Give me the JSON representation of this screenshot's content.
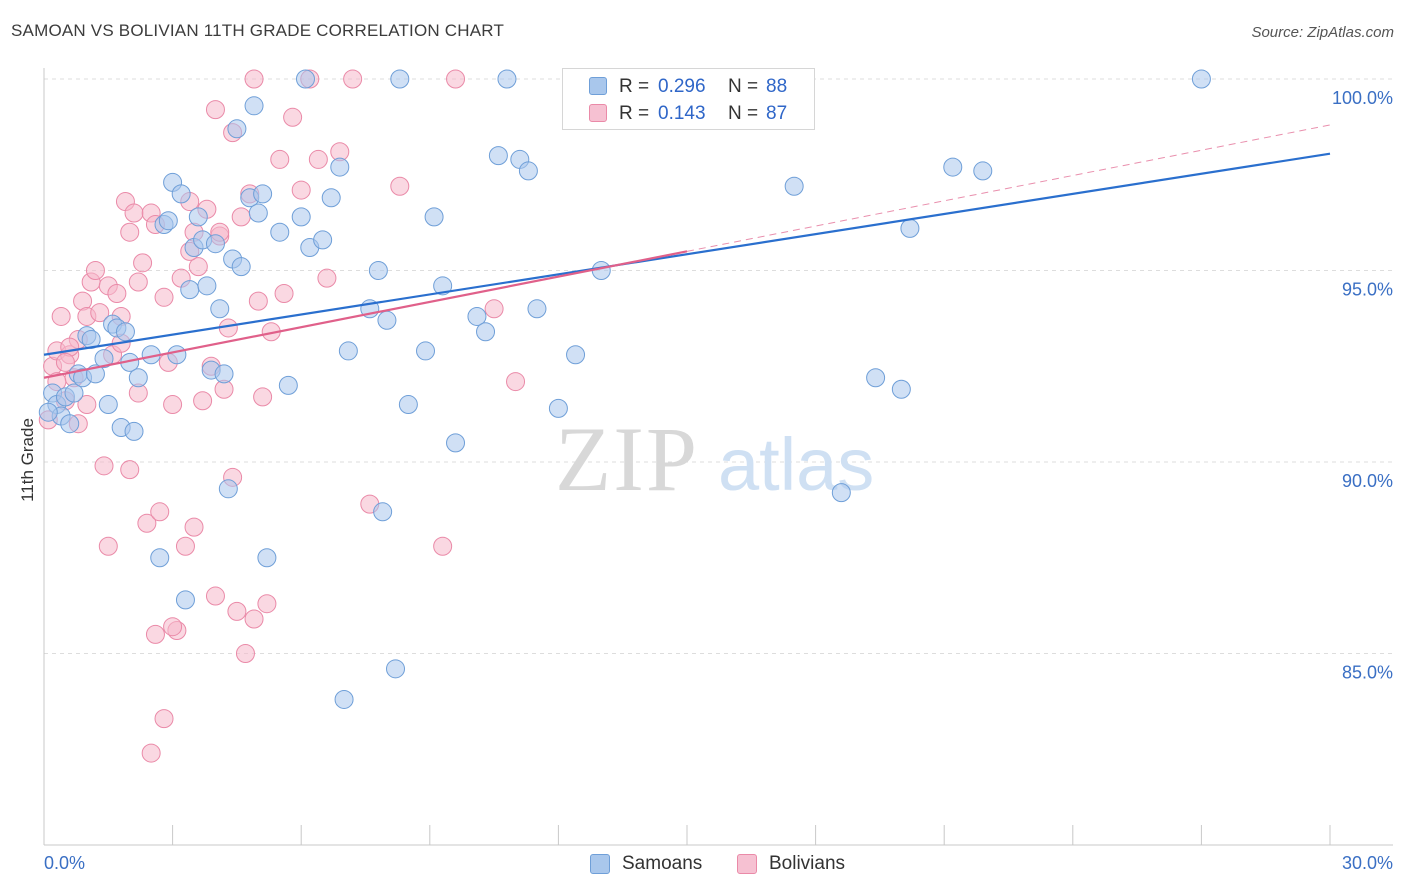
{
  "header": {
    "title": "SAMOAN VS BOLIVIAN 11TH GRADE CORRELATION CHART",
    "source": "Source: ZipAtlas.com"
  },
  "watermark": {
    "zip": "ZIP",
    "atlas": "atlas"
  },
  "legend_top": {
    "rows": [
      {
        "r_label": "R =",
        "r_value": "0.296",
        "n_label": "N =",
        "n_value": "88"
      },
      {
        "r_label": "R =",
        "r_value": "0.143",
        "n_label": "N =",
        "n_value": "87"
      }
    ]
  },
  "legend_bottom": {
    "items": [
      "Samoans",
      "Bolivians"
    ]
  },
  "colors": {
    "samoan_fill": "#a9c7ec",
    "samoan_stroke": "#6f9fd8",
    "samoan_line": "#2a6fce",
    "bolivian_fill": "#f6b8cb",
    "bolivian_stroke": "#ea8aa8",
    "bolivian_line": "#e0608a",
    "grid": "#dddddd",
    "tick_label": "#3a6fc4"
  },
  "chart_data": {
    "type": "scatter",
    "title": "SAMOAN VS BOLIVIAN 11TH GRADE CORRELATION CHART",
    "xlabel": "",
    "ylabel": "11th Grade",
    "xlim": [
      0,
      30
    ],
    "ylim": [
      80.5,
      100.8
    ],
    "x_tick_labels": [
      {
        "value": 0,
        "label": "0.0%"
      },
      {
        "value": 30,
        "label": "30.0%"
      }
    ],
    "y_tick_labels": [
      {
        "value": 85,
        "label": "85.0%"
      },
      {
        "value": 90,
        "label": "90.0%"
      },
      {
        "value": 95,
        "label": "95.0%"
      },
      {
        "value": 100,
        "label": "100.0%"
      }
    ],
    "grid": true,
    "legend_position": "top-center",
    "series": [
      {
        "name": "Samoans",
        "r": 0.296,
        "n": 88,
        "trend": {
          "x": [
            0,
            30
          ],
          "y": [
            92.8,
            98.05
          ]
        },
        "points": [
          [
            0.2,
            91.8
          ],
          [
            0.3,
            91.5
          ],
          [
            0.4,
            91.2
          ],
          [
            0.5,
            91.7
          ],
          [
            0.6,
            91.0
          ],
          [
            0.7,
            91.8
          ],
          [
            0.8,
            92.3
          ],
          [
            0.9,
            92.2
          ],
          [
            1.0,
            93.3
          ],
          [
            1.1,
            93.2
          ],
          [
            1.2,
            92.3
          ],
          [
            1.4,
            92.7
          ],
          [
            1.5,
            91.5
          ],
          [
            1.6,
            93.6
          ],
          [
            1.7,
            93.5
          ],
          [
            1.8,
            90.9
          ],
          [
            1.9,
            93.4
          ],
          [
            2.0,
            92.6
          ],
          [
            2.1,
            90.8
          ],
          [
            2.2,
            92.2
          ],
          [
            2.5,
            92.8
          ],
          [
            2.7,
            87.5
          ],
          [
            2.8,
            96.2
          ],
          [
            2.9,
            96.3
          ],
          [
            3.0,
            97.3
          ],
          [
            3.1,
            92.8
          ],
          [
            3.2,
            97.0
          ],
          [
            3.3,
            86.4
          ],
          [
            3.4,
            94.5
          ],
          [
            3.5,
            95.6
          ],
          [
            3.6,
            96.4
          ],
          [
            3.7,
            95.8
          ],
          [
            3.8,
            94.6
          ],
          [
            3.9,
            92.4
          ],
          [
            4.0,
            95.7
          ],
          [
            4.1,
            94.0
          ],
          [
            4.2,
            92.3
          ],
          [
            4.3,
            89.3
          ],
          [
            4.4,
            95.3
          ],
          [
            4.5,
            98.7
          ],
          [
            4.6,
            95.1
          ],
          [
            4.8,
            96.9
          ],
          [
            4.9,
            99.3
          ],
          [
            5.0,
            96.5
          ],
          [
            5.1,
            97.0
          ],
          [
            5.2,
            87.5
          ],
          [
            5.5,
            96.0
          ],
          [
            5.7,
            92.0
          ],
          [
            6.0,
            96.4
          ],
          [
            6.1,
            100.0
          ],
          [
            6.2,
            95.6
          ],
          [
            6.5,
            95.8
          ],
          [
            6.7,
            96.9
          ],
          [
            6.9,
            97.7
          ],
          [
            7.0,
            83.8
          ],
          [
            7.1,
            92.9
          ],
          [
            7.6,
            94.0
          ],
          [
            7.8,
            95.0
          ],
          [
            7.9,
            88.7
          ],
          [
            8.0,
            93.7
          ],
          [
            8.2,
            84.6
          ],
          [
            8.3,
            100.0
          ],
          [
            8.5,
            91.5
          ],
          [
            8.9,
            92.9
          ],
          [
            9.1,
            96.4
          ],
          [
            9.3,
            94.6
          ],
          [
            9.6,
            90.5
          ],
          [
            10.1,
            93.8
          ],
          [
            10.3,
            93.4
          ],
          [
            10.6,
            98.0
          ],
          [
            10.8,
            100.0
          ],
          [
            11.1,
            97.9
          ],
          [
            11.3,
            97.6
          ],
          [
            11.5,
            94.0
          ],
          [
            12.0,
            91.4
          ],
          [
            12.4,
            92.8
          ],
          [
            13.0,
            95.0
          ],
          [
            14.0,
            100.0
          ],
          [
            14.2,
            100.0
          ],
          [
            17.5,
            97.2
          ],
          [
            18.6,
            89.2
          ],
          [
            19.4,
            92.2
          ],
          [
            20.0,
            91.9
          ],
          [
            20.2,
            96.1
          ],
          [
            21.2,
            97.7
          ],
          [
            21.9,
            97.6
          ],
          [
            27.0,
            100.0
          ],
          [
            0.1,
            91.3
          ]
        ]
      },
      {
        "name": "Bolivians",
        "r": 0.143,
        "n": 87,
        "trend": {
          "x": [
            0,
            15
          ],
          "y": [
            92.2,
            95.5
          ]
        },
        "trend_extended": {
          "x": [
            15,
            30
          ],
          "y": [
            95.5,
            98.8
          ]
        },
        "points": [
          [
            0.1,
            91.1
          ],
          [
            0.2,
            92.5
          ],
          [
            0.3,
            92.9
          ],
          [
            0.4,
            93.8
          ],
          [
            0.5,
            91.6
          ],
          [
            0.6,
            92.8
          ],
          [
            0.7,
            92.2
          ],
          [
            0.8,
            93.2
          ],
          [
            0.9,
            94.2
          ],
          [
            1.0,
            93.8
          ],
          [
            1.1,
            94.7
          ],
          [
            1.2,
            95.0
          ],
          [
            1.3,
            93.9
          ],
          [
            1.4,
            89.9
          ],
          [
            1.5,
            94.6
          ],
          [
            1.6,
            92.8
          ],
          [
            1.7,
            94.4
          ],
          [
            1.8,
            93.8
          ],
          [
            1.9,
            96.8
          ],
          [
            2.0,
            96.0
          ],
          [
            2.1,
            96.5
          ],
          [
            2.2,
            94.7
          ],
          [
            2.3,
            95.2
          ],
          [
            2.4,
            88.4
          ],
          [
            2.5,
            96.5
          ],
          [
            2.6,
            96.2
          ],
          [
            2.7,
            88.7
          ],
          [
            2.8,
            94.3
          ],
          [
            2.9,
            92.6
          ],
          [
            3.0,
            91.5
          ],
          [
            3.1,
            85.6
          ],
          [
            3.2,
            94.8
          ],
          [
            3.3,
            87.8
          ],
          [
            3.4,
            96.8
          ],
          [
            3.5,
            96.0
          ],
          [
            3.6,
            95.1
          ],
          [
            3.7,
            91.6
          ],
          [
            3.8,
            96.6
          ],
          [
            3.9,
            92.5
          ],
          [
            4.0,
            99.2
          ],
          [
            4.1,
            95.9
          ],
          [
            4.2,
            91.9
          ],
          [
            4.3,
            93.5
          ],
          [
            4.4,
            98.6
          ],
          [
            4.5,
            86.1
          ],
          [
            4.6,
            96.4
          ],
          [
            4.7,
            85.0
          ],
          [
            4.8,
            97.0
          ],
          [
            4.9,
            100.0
          ],
          [
            5.0,
            94.2
          ],
          [
            5.1,
            91.7
          ],
          [
            5.3,
            93.4
          ],
          [
            5.5,
            97.9
          ],
          [
            5.6,
            94.4
          ],
          [
            5.8,
            99.0
          ],
          [
            6.0,
            97.1
          ],
          [
            6.2,
            100.0
          ],
          [
            6.4,
            97.9
          ],
          [
            6.6,
            94.8
          ],
          [
            6.9,
            98.1
          ],
          [
            7.2,
            100.0
          ],
          [
            7.6,
            88.9
          ],
          [
            8.3,
            97.2
          ],
          [
            9.3,
            87.8
          ],
          [
            9.6,
            100.0
          ],
          [
            10.5,
            94.0
          ],
          [
            11.0,
            92.1
          ],
          [
            1.0,
            91.5
          ],
          [
            1.5,
            87.8
          ],
          [
            2.0,
            89.8
          ],
          [
            2.5,
            82.4
          ],
          [
            2.8,
            83.3
          ],
          [
            3.0,
            85.7
          ],
          [
            3.5,
            88.3
          ],
          [
            4.0,
            86.5
          ],
          [
            4.4,
            89.6
          ],
          [
            0.8,
            91.0
          ],
          [
            0.6,
            93.0
          ],
          [
            1.8,
            93.1
          ],
          [
            2.2,
            91.8
          ],
          [
            3.4,
            95.5
          ],
          [
            4.1,
            96.0
          ],
          [
            0.3,
            92.1
          ],
          [
            0.5,
            92.6
          ],
          [
            4.9,
            85.9
          ],
          [
            5.2,
            86.3
          ],
          [
            2.6,
            85.5
          ]
        ]
      }
    ]
  }
}
